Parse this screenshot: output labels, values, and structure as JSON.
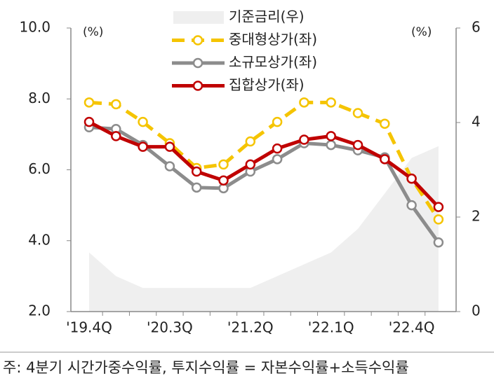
{
  "chart_data": {
    "type": "line",
    "left_unit": "(%)",
    "right_unit": "(%)",
    "categories": [
      "'19.4Q",
      null,
      null,
      "'20.3Q",
      null,
      null,
      "'21.2Q",
      null,
      null,
      "'22.1Q",
      null,
      null,
      "'22.4Q",
      null
    ],
    "series": [
      {
        "name": "기준금리(우)",
        "type": "area",
        "axis": "y2",
        "color": "#efefef",
        "values": [
          1.25,
          0.75,
          0.5,
          0.5,
          0.5,
          0.5,
          0.5,
          0.75,
          1.0,
          1.25,
          1.75,
          2.5,
          3.25,
          3.5
        ]
      },
      {
        "name": "중대형상가(좌)",
        "color": "#f5c400",
        "dashed": true,
        "values": [
          7.9,
          7.85,
          7.35,
          6.75,
          6.05,
          6.15,
          6.8,
          7.35,
          7.9,
          7.9,
          7.6,
          7.3,
          5.75,
          4.6
        ]
      },
      {
        "name": "소규모상가(좌)",
        "color": "#8c8c8c",
        "values": [
          7.2,
          7.15,
          6.7,
          6.1,
          5.5,
          5.48,
          5.95,
          6.3,
          6.75,
          6.7,
          6.55,
          6.35,
          5.0,
          3.95
        ]
      },
      {
        "name": "집합상가(좌)",
        "color": "#c00000",
        "values": [
          7.35,
          6.95,
          6.65,
          6.65,
          5.95,
          5.7,
          6.15,
          6.6,
          6.85,
          6.95,
          6.7,
          6.3,
          5.75,
          4.95
        ]
      }
    ],
    "ylim": [
      2,
      10
    ],
    "yticks": [
      {
        "value": 2,
        "label": "2.0"
      },
      {
        "value": 4,
        "label": "4.0"
      },
      {
        "value": 6,
        "label": "6.0"
      },
      {
        "value": 8,
        "label": "8.0"
      },
      {
        "value": 10,
        "label": "10.0"
      }
    ],
    "y2lim": [
      0,
      6
    ],
    "y2ticks": [
      0,
      2,
      4,
      6
    ],
    "footnote": "주: 4분기 시간가중수익률, 투지수익률 = 자본수익률+소득수익률"
  }
}
